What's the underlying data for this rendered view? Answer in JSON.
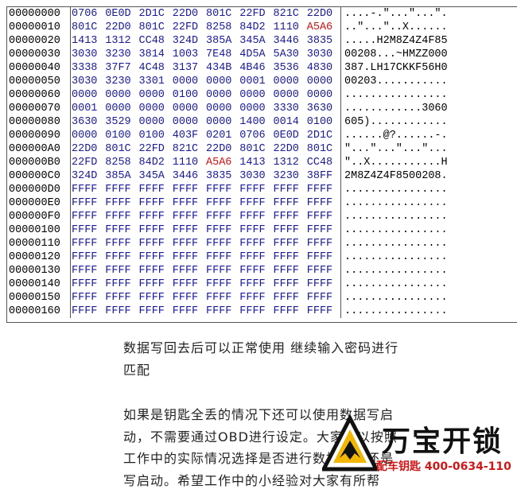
{
  "hex_view": {
    "highlight_color": "#d01010",
    "rows": [
      {
        "address": "00000000",
        "words": [
          "0706",
          "0E0D",
          "2D1C",
          "22D0",
          "801C",
          "22FD",
          "821C",
          "22D0"
        ],
        "ascii": "....-.\"...\"...\".",
        "highlight": []
      },
      {
        "address": "00000010",
        "words": [
          "801C",
          "22D0",
          "801C",
          "22FD",
          "8258",
          "84D2",
          "1110",
          "A5A6"
        ],
        "ascii": "..\"...\"..X......",
        "highlight": [
          7
        ]
      },
      {
        "address": "00000020",
        "words": [
          "1413",
          "1312",
          "CC48",
          "324D",
          "385A",
          "345A",
          "3446",
          "3835"
        ],
        "ascii": ".....H2M8Z4Z4F85",
        "highlight": []
      },
      {
        "address": "00000030",
        "words": [
          "3030",
          "3230",
          "3814",
          "1003",
          "7E48",
          "4D5A",
          "5A30",
          "3030"
        ],
        "ascii": "00208...~HMZZ000",
        "highlight": []
      },
      {
        "address": "00000040",
        "words": [
          "3338",
          "37F7",
          "4C48",
          "3137",
          "434B",
          "4B46",
          "3536",
          "4830"
        ],
        "ascii": "387.LH17CKKF56H0",
        "highlight": []
      },
      {
        "address": "00000050",
        "words": [
          "3030",
          "3230",
          "3301",
          "0000",
          "0000",
          "0001",
          "0000",
          "0000"
        ],
        "ascii": "00203...........",
        "highlight": []
      },
      {
        "address": "00000060",
        "words": [
          "0000",
          "0000",
          "0000",
          "0100",
          "0000",
          "0000",
          "0000",
          "0000"
        ],
        "ascii": "................",
        "highlight": []
      },
      {
        "address": "00000070",
        "words": [
          "0001",
          "0000",
          "0000",
          "0000",
          "0000",
          "0000",
          "3330",
          "3630"
        ],
        "ascii": "............3060",
        "highlight": []
      },
      {
        "address": "00000080",
        "words": [
          "3630",
          "3529",
          "0000",
          "0000",
          "0000",
          "1400",
          "0014",
          "0100"
        ],
        "ascii": "605)............",
        "highlight": []
      },
      {
        "address": "00000090",
        "words": [
          "0000",
          "0100",
          "0100",
          "403F",
          "0201",
          "0706",
          "0E0D",
          "2D1C"
        ],
        "ascii": "......@?......-.",
        "highlight": []
      },
      {
        "address": "000000A0",
        "words": [
          "22D0",
          "801C",
          "22FD",
          "821C",
          "22D0",
          "801C",
          "22D0",
          "801C"
        ],
        "ascii": "\"...\"...\"...\"...",
        "highlight": []
      },
      {
        "address": "000000B0",
        "words": [
          "22FD",
          "8258",
          "84D2",
          "1110",
          "A5A6",
          "1413",
          "1312",
          "CC48"
        ],
        "ascii": "\"..X...........H",
        "highlight": [
          4
        ]
      },
      {
        "address": "000000C0",
        "words": [
          "324D",
          "385A",
          "345A",
          "3446",
          "3835",
          "3030",
          "3230",
          "38FF"
        ],
        "ascii": "2M8Z4Z4F8500208.",
        "highlight": []
      },
      {
        "address": "000000D0",
        "words": [
          "FFFF",
          "FFFF",
          "FFFF",
          "FFFF",
          "FFFF",
          "FFFF",
          "FFFF",
          "FFFF"
        ],
        "ascii": "................",
        "highlight": []
      },
      {
        "address": "000000E0",
        "words": [
          "FFFF",
          "FFFF",
          "FFFF",
          "FFFF",
          "FFFF",
          "FFFF",
          "FFFF",
          "FFFF"
        ],
        "ascii": "................",
        "highlight": []
      },
      {
        "address": "000000F0",
        "words": [
          "FFFF",
          "FFFF",
          "FFFF",
          "FFFF",
          "FFFF",
          "FFFF",
          "FFFF",
          "FFFF"
        ],
        "ascii": "................",
        "highlight": []
      },
      {
        "address": "00000100",
        "words": [
          "FFFF",
          "FFFF",
          "FFFF",
          "FFFF",
          "FFFF",
          "FFFF",
          "FFFF",
          "FFFF"
        ],
        "ascii": "................",
        "highlight": []
      },
      {
        "address": "00000110",
        "words": [
          "FFFF",
          "FFFF",
          "FFFF",
          "FFFF",
          "FFFF",
          "FFFF",
          "FFFF",
          "FFFF"
        ],
        "ascii": "................",
        "highlight": []
      },
      {
        "address": "00000120",
        "words": [
          "FFFF",
          "FFFF",
          "FFFF",
          "FFFF",
          "FFFF",
          "FFFF",
          "FFFF",
          "FFFF"
        ],
        "ascii": "................",
        "highlight": []
      },
      {
        "address": "00000130",
        "words": [
          "FFFF",
          "FFFF",
          "FFFF",
          "FFFF",
          "FFFF",
          "FFFF",
          "FFFF",
          "FFFF"
        ],
        "ascii": "................",
        "highlight": []
      },
      {
        "address": "00000140",
        "words": [
          "FFFF",
          "FFFF",
          "FFFF",
          "FFFF",
          "FFFF",
          "FFFF",
          "FFFF",
          "FFFF"
        ],
        "ascii": "................",
        "highlight": []
      },
      {
        "address": "00000150",
        "words": [
          "FFFF",
          "FFFF",
          "FFFF",
          "FFFF",
          "FFFF",
          "FFFF",
          "FFFF",
          "FFFF"
        ],
        "ascii": "................",
        "highlight": []
      },
      {
        "address": "00000160",
        "words": [
          "FFFF",
          "FFFF",
          "FFFF",
          "FFFF",
          "FFFF",
          "FFFF",
          "FFFF",
          "FFFF"
        ],
        "ascii": "................",
        "highlight": []
      }
    ]
  },
  "article": {
    "paragraphs": [
      {
        "lines": [
          "数据写回去后可以正常使用 继续输入密码进行",
          "匹配"
        ]
      },
      {
        "lines": [
          "如果是钥匙全丢的情况下还可以使用数据写启",
          "动，不需要通过OBD进行设定。大家可以按照",
          "工作中的实际情况选择是否进行数据修改还是",
          "写启动。希望工作中的小经验对大家有所帮"
        ]
      }
    ]
  },
  "watermark": {
    "brand": "万宝开锁",
    "tagline": "配车钥匙 400-0634-110"
  }
}
